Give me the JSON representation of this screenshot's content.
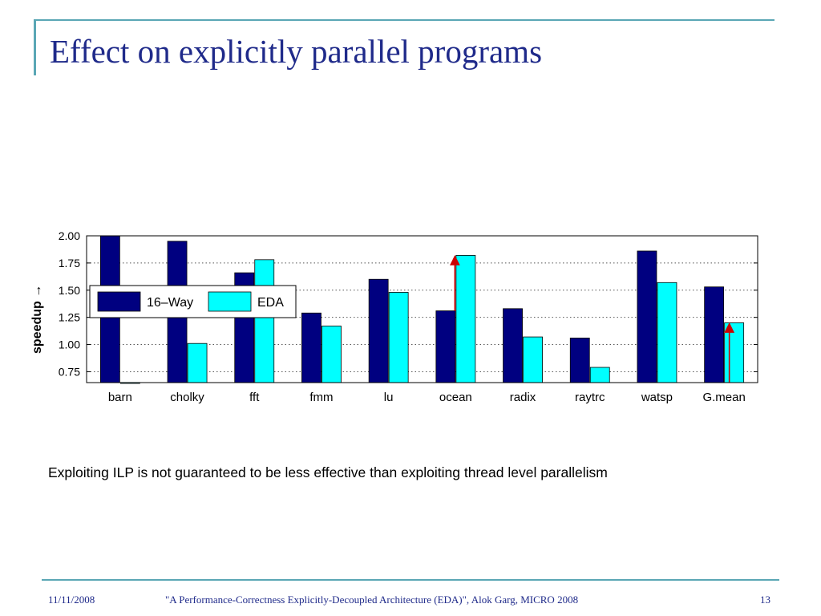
{
  "slide": {
    "title": "Effect on explicitly parallel programs",
    "caption": "Exploiting ILP is not guaranteed to be less effective than exploiting thread level parallelism",
    "footer": {
      "date": "11/11/2008",
      "citation": "\"A Performance-Correctness Explicitly-Decoupled Architecture (EDA)\", Alok Garg, MICRO 2008",
      "page": "13"
    }
  },
  "chart_data": {
    "type": "bar",
    "categories": [
      "barn",
      "cholky",
      "fft",
      "fmm",
      "lu",
      "ocean",
      "radix",
      "raytrc",
      "watsp",
      "G.mean"
    ],
    "series": [
      {
        "name": "16–Way",
        "color": "#000080",
        "values": [
          2.0,
          1.95,
          1.66,
          1.29,
          1.6,
          1.31,
          1.33,
          1.06,
          1.86,
          1.53
        ]
      },
      {
        "name": "EDA",
        "color": "#00ffff",
        "values": [
          0.65,
          1.01,
          1.78,
          1.17,
          1.48,
          1.82,
          1.07,
          0.79,
          1.57,
          1.2
        ]
      }
    ],
    "ylabel": "speedup",
    "ylabel_arrow": "→",
    "ylim": [
      0.65,
      2.0
    ],
    "yticks": [
      "0.75",
      "1.00",
      "1.25",
      "1.50",
      "1.75",
      "2.00"
    ],
    "grid": "dotted horizontal",
    "legend_position": "top-left",
    "arrow_color": "#cc0000",
    "annotations": [
      {
        "category": "ocean",
        "from": 1.31,
        "to": 1.82
      },
      {
        "category": "G.mean",
        "from": 0.65,
        "to": 1.2
      }
    ]
  }
}
